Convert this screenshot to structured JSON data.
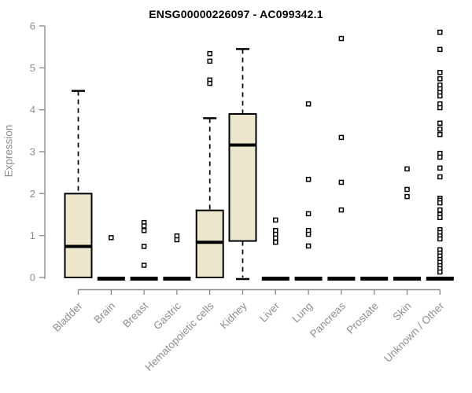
{
  "chart_data": {
    "type": "boxplot",
    "title": "ENSG00000226097 - AC099342.1",
    "ylabel": "Expression",
    "ylim": [
      0,
      6
    ],
    "yticks": [
      0,
      1,
      2,
      3,
      4,
      5,
      6
    ],
    "grid": false,
    "legend": "none",
    "categories": [
      "Bladder",
      "Brain",
      "Breast",
      "Gastric",
      "Hematopoietic cells",
      "Kidney",
      "Liver",
      "Lung",
      "Pancreas",
      "Prostate",
      "Skin",
      "Unknown / Other"
    ],
    "boxes": [
      {
        "category": "Bladder",
        "whisker_low": 0,
        "q1": 0,
        "median": 0.74,
        "q3": 2.0,
        "whisker_high": 4.45,
        "outliers": []
      },
      {
        "category": "Brain",
        "whisker_low": 0,
        "q1": 0,
        "median": 0,
        "q3": 0,
        "whisker_high": 0,
        "outliers": [
          0.95
        ]
      },
      {
        "category": "Breast",
        "whisker_low": 0,
        "q1": 0,
        "median": 0,
        "q3": 0,
        "whisker_high": 0,
        "outliers": [
          1.31,
          1.23,
          1.12,
          0.74,
          0.29
        ]
      },
      {
        "category": "Gastric",
        "whisker_low": 0,
        "q1": 0,
        "median": 0,
        "q3": 0,
        "whisker_high": 0,
        "outliers": [
          0.99,
          0.9
        ]
      },
      {
        "category": "Hematopoietic cells",
        "whisker_low": 0,
        "q1": 0,
        "median": 0.84,
        "q3": 1.6,
        "whisker_high": 3.8,
        "outliers": [
          5.34,
          5.16,
          4.71,
          4.63
        ]
      },
      {
        "category": "Kidney",
        "whisker_low": 0,
        "q1": 0.87,
        "median": 3.16,
        "q3": 3.9,
        "whisker_high": 5.45,
        "outliers": []
      },
      {
        "category": "Liver",
        "whisker_low": 0,
        "q1": 0,
        "median": 0,
        "q3": 0,
        "whisker_high": 0,
        "outliers": [
          1.37,
          1.12,
          1.03,
          0.94,
          0.84
        ]
      },
      {
        "category": "Lung",
        "whisker_low": 0,
        "q1": 0,
        "median": 0,
        "q3": 0,
        "whisker_high": 0,
        "outliers": [
          4.14,
          2.34,
          1.52,
          1.12,
          1.03,
          0.75
        ]
      },
      {
        "category": "Pancreas",
        "whisker_low": 0,
        "q1": 0,
        "median": 0,
        "q3": 0,
        "whisker_high": 0,
        "outliers": [
          5.7,
          3.34,
          2.27,
          1.61
        ]
      },
      {
        "category": "Prostate",
        "whisker_low": 0,
        "q1": 0,
        "median": 0,
        "q3": 0,
        "whisker_high": 0,
        "outliers": []
      },
      {
        "category": "Skin",
        "whisker_low": 0,
        "q1": 0,
        "median": 0,
        "q3": 0,
        "whisker_high": 0,
        "outliers": [
          2.59,
          2.1,
          1.93
        ]
      },
      {
        "category": "Unknown / Other",
        "whisker_low": 0,
        "q1": 0,
        "median": 0,
        "q3": 0,
        "whisker_high": 0,
        "outliers": [
          5.85,
          5.44,
          4.89,
          4.74,
          4.59,
          4.5,
          4.41,
          4.33,
          4.14,
          4.05,
          3.68,
          3.54,
          3.41,
          2.96,
          2.87,
          2.61,
          2.4,
          1.89,
          1.84,
          1.78,
          1.61,
          1.5,
          1.43,
          1.14,
          1.07,
          0.99,
          0.92,
          0.66,
          0.58,
          0.51,
          0.43,
          0.36,
          0.28,
          0.21,
          0.13
        ]
      }
    ],
    "colors": {
      "box_fill": "#ece7cd",
      "box_stroke": "#000000",
      "median": "#000000",
      "whisker": "#000000",
      "outlier_stroke": "#000000",
      "outlier_fill": "#ffffff",
      "axis_line": "#8f8f8f",
      "tick_label": "#8f8f8f",
      "title": "#000000",
      "background": "#ffffff"
    }
  }
}
